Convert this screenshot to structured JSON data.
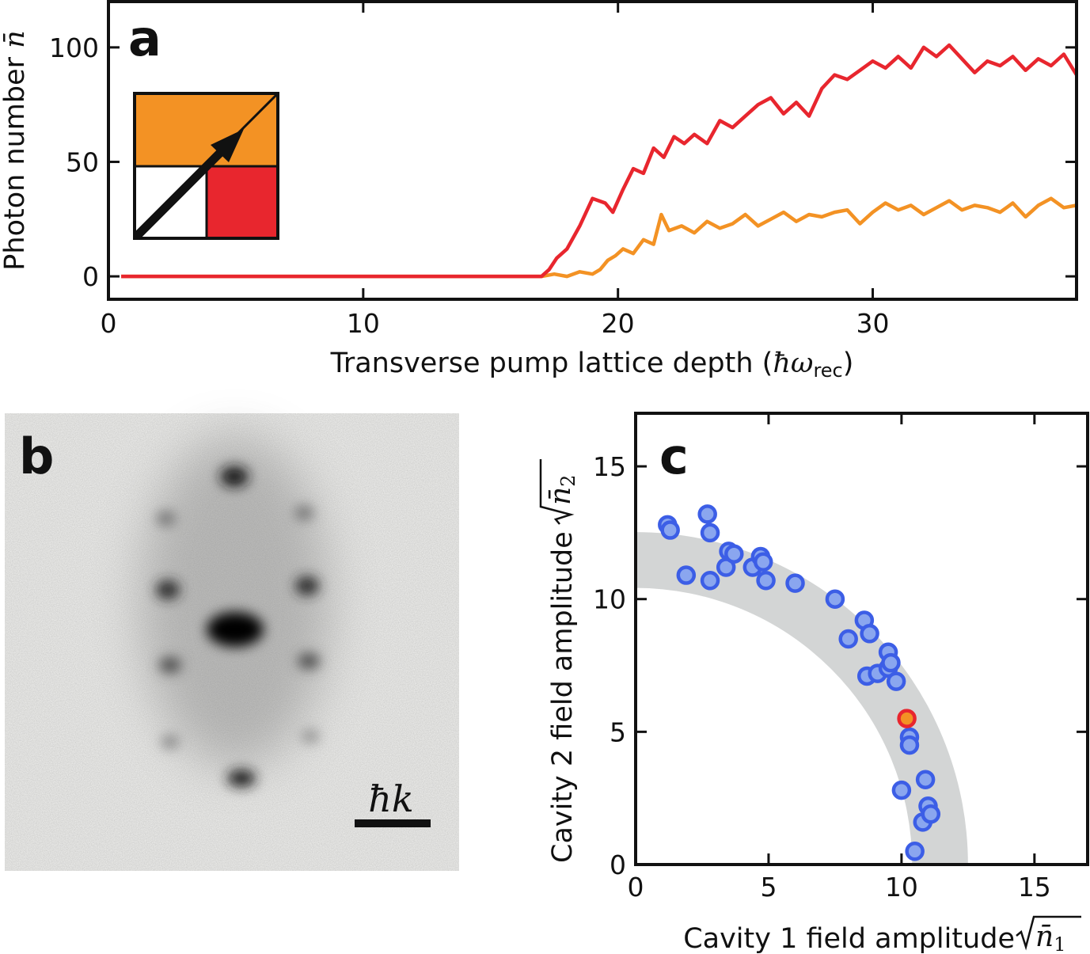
{
  "chart_data": [
    {
      "panel": "a",
      "type": "line",
      "xlabel_text": "Transverse pump lattice depth (",
      "xlabel_math": "ħω",
      "xlabel_sub": "rec",
      "xlabel_close": ")",
      "ylabel_text": "Photon number ",
      "ylabel_math": "n̄",
      "xlim": [
        0,
        38
      ],
      "ylim": [
        -10,
        120
      ],
      "xticks": [
        0,
        10,
        20,
        30
      ],
      "yticks": [
        0,
        50,
        100
      ],
      "grid": false,
      "colors": {
        "red": "#e8262e",
        "orange": "#f39224"
      },
      "series": [
        {
          "color": "#f39224",
          "x": [
            0.5,
            17.0,
            17.5,
            18.0,
            18.5,
            19.0,
            19.3,
            19.6,
            19.9,
            20.2,
            20.6,
            21.0,
            21.4,
            21.7,
            22.0,
            22.5,
            23.0,
            23.5,
            24.0,
            24.5,
            25.0,
            25.5,
            26.0,
            26.5,
            27.0,
            27.5,
            28.0,
            28.5,
            29.0,
            29.5,
            30.0,
            30.5,
            31.0,
            31.5,
            32.0,
            32.5,
            33.0,
            33.5,
            34.0,
            34.5,
            35.0,
            35.5,
            36.0,
            36.5,
            37.0,
            37.5,
            38.0
          ],
          "y": [
            0,
            0,
            1,
            0,
            2,
            1,
            3,
            7,
            9,
            12,
            10,
            16,
            14,
            27,
            20,
            22,
            19,
            24,
            21,
            23,
            27,
            22,
            25,
            28,
            24,
            27,
            26,
            28,
            29,
            23,
            28,
            32,
            29,
            31,
            27,
            30,
            33,
            29,
            31,
            30,
            28,
            32,
            26,
            31,
            34,
            30,
            31
          ]
        },
        {
          "color": "#e8262e",
          "x": [
            0.5,
            17.0,
            17.3,
            17.6,
            18.0,
            18.5,
            19.0,
            19.5,
            19.8,
            20.2,
            20.6,
            21.0,
            21.4,
            21.8,
            22.2,
            22.6,
            23.0,
            23.5,
            24.0,
            24.5,
            25.0,
            25.5,
            26.0,
            26.5,
            27.0,
            27.5,
            28.0,
            28.5,
            29.0,
            29.5,
            30.0,
            30.5,
            31.0,
            31.5,
            32.0,
            32.5,
            33.0,
            33.5,
            34.0,
            34.5,
            35.0,
            35.5,
            36.0,
            36.5,
            37.0,
            37.5,
            38.0
          ],
          "y": [
            0,
            0,
            3,
            8,
            12,
            22,
            34,
            32,
            28,
            38,
            47,
            45,
            56,
            52,
            61,
            58,
            62,
            58,
            68,
            65,
            70,
            75,
            78,
            71,
            76,
            70,
            82,
            88,
            86,
            90,
            94,
            91,
            96,
            91,
            100,
            96,
            101,
            95,
            89,
            94,
            92,
            96,
            90,
            95,
            92,
            97,
            88
          ]
        }
      ],
      "inset": {
        "colors": [
          "#f39224",
          "#e8262e",
          "#ffffff"
        ]
      }
    },
    {
      "panel": "b",
      "type": "image",
      "scalebar_math": "ħk"
    },
    {
      "panel": "c",
      "type": "scatter",
      "xlabel_text": "Cavity 1 field amplitude ",
      "xlabel_math": "n̄",
      "xlabel_sub": "1",
      "ylabel_text": "Cavity 2 field amplitude ",
      "ylabel_math": "n̄",
      "ylabel_sub": "2",
      "xlim": [
        0,
        17
      ],
      "ylim": [
        0,
        17
      ],
      "xticks": [
        0,
        5,
        10,
        15
      ],
      "yticks": [
        0,
        5,
        10,
        15
      ],
      "grid": false,
      "band": {
        "inner_radius": 10.4,
        "outer_radius": 12.5,
        "color": "#d3d5d5"
      },
      "point_color": "#3c5ee6",
      "point_fill": "#8aa6ef",
      "highlight_color": "#f39224",
      "highlight_edge": "#e8262e",
      "points": [
        [
          1.2,
          12.8
        ],
        [
          1.3,
          12.6
        ],
        [
          1.9,
          10.9
        ],
        [
          2.7,
          13.2
        ],
        [
          2.8,
          12.5
        ],
        [
          2.8,
          10.7
        ],
        [
          3.4,
          11.2
        ],
        [
          3.5,
          11.8
        ],
        [
          3.7,
          11.7
        ],
        [
          4.4,
          11.2
        ],
        [
          4.7,
          11.6
        ],
        [
          4.8,
          11.4
        ],
        [
          4.9,
          10.7
        ],
        [
          6.0,
          10.6
        ],
        [
          7.5,
          10.0
        ],
        [
          8.0,
          8.5
        ],
        [
          8.6,
          9.2
        ],
        [
          8.8,
          8.7
        ],
        [
          8.7,
          7.1
        ],
        [
          9.1,
          7.2
        ],
        [
          9.5,
          8.0
        ],
        [
          9.5,
          7.4
        ],
        [
          9.6,
          7.6
        ],
        [
          9.8,
          6.9
        ],
        [
          10.3,
          4.8
        ],
        [
          10.3,
          4.5
        ],
        [
          10.0,
          2.8
        ],
        [
          10.5,
          0.5
        ],
        [
          10.8,
          1.6
        ],
        [
          10.9,
          3.2
        ],
        [
          11.0,
          2.2
        ],
        [
          11.1,
          1.9
        ]
      ],
      "highlight": [
        10.2,
        5.5
      ]
    }
  ],
  "panels": {
    "a_letter": "a",
    "b_letter": "b",
    "c_letter": "c"
  }
}
